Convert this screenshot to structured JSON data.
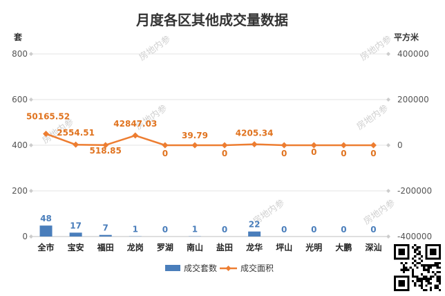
{
  "title": "月度各区其他成交量数据",
  "units": {
    "left": "套",
    "right": "平方米"
  },
  "watermark": "房地内参",
  "legend": {
    "bar": "成交套数",
    "line": "成交面积",
    "position": "bottom"
  },
  "colors": {
    "bar": "#4a7ebb",
    "line": "#ed7d31",
    "grid": "#e3e3e3"
  },
  "chart_data": {
    "type": "bar+line",
    "title": "月度各区其他成交量数据",
    "categories": [
      "全市",
      "宝安",
      "福田",
      "龙岗",
      "罗湖",
      "南山",
      "盐田",
      "龙华",
      "坪山",
      "光明",
      "大鹏",
      "深汕"
    ],
    "series": [
      {
        "name": "成交套数",
        "type": "bar",
        "axis": "left",
        "values": [
          48,
          17,
          7,
          1,
          0,
          1,
          0,
          22,
          0,
          0,
          0,
          0
        ],
        "labels": [
          "48",
          "17",
          "7",
          "1",
          "0",
          "1",
          "0",
          "22",
          "0",
          "0",
          "0",
          "0"
        ]
      },
      {
        "name": "成交面积",
        "type": "line",
        "axis": "right",
        "values": [
          50165.52,
          2554.51,
          518.85,
          42847.03,
          0,
          39.79,
          0,
          4205.34,
          0,
          0,
          0,
          0
        ],
        "labels": [
          "50165.52",
          "2554.51",
          "518.85",
          "42847.03",
          "0",
          "39.79",
          "0",
          "4205.34",
          "0",
          "0",
          "0",
          "0"
        ]
      }
    ],
    "y_left": {
      "label": "套",
      "ylim": [
        0,
        800
      ],
      "ticks": [
        0,
        200,
        400,
        600,
        800
      ]
    },
    "y_right": {
      "label": "平方米",
      "ylim": [
        -400000,
        400000
      ],
      "ticks": [
        -400000,
        -200000,
        0,
        200000,
        400000
      ]
    },
    "grid": true
  }
}
